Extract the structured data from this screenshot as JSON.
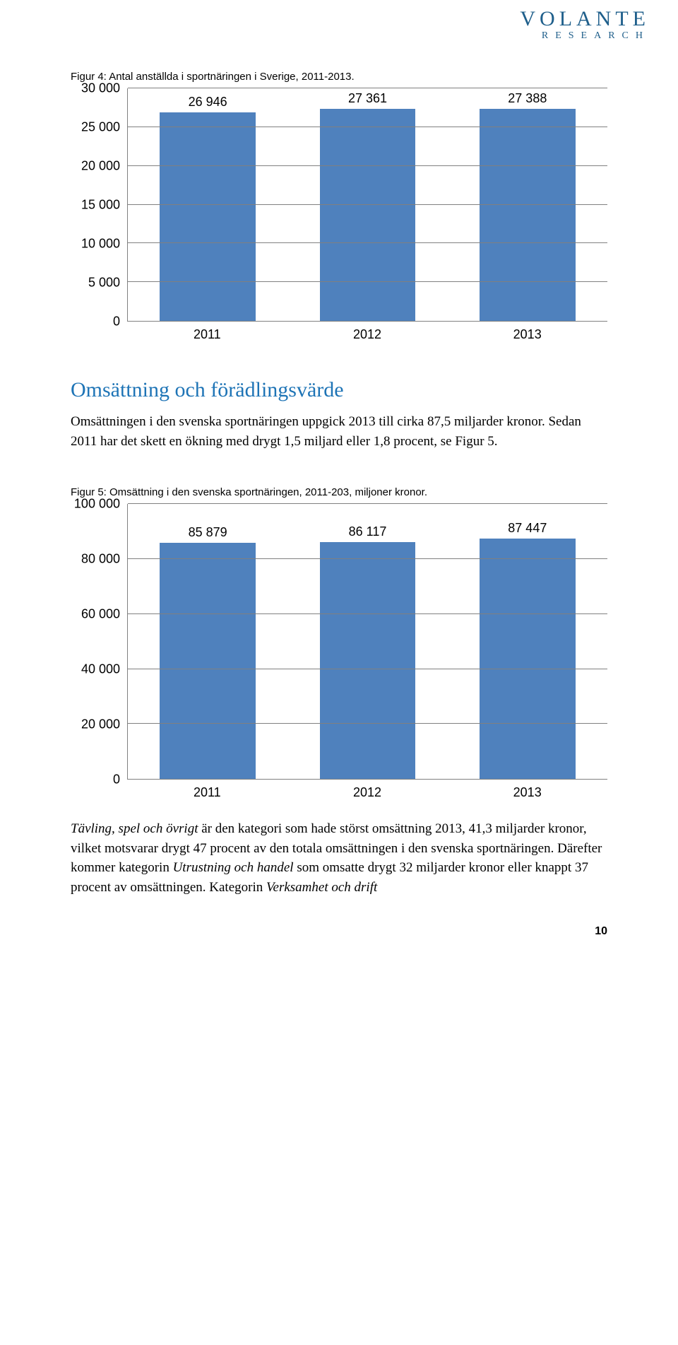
{
  "logo": {
    "brand": "VOLANTE",
    "sub": "RESEARCH",
    "color": "#1f5f8b"
  },
  "figure4": {
    "caption": "Figur 4: Antal anställda i sportnäringen i Sverige, 2011-2013.",
    "type": "bar",
    "categories": [
      "2011",
      "2012",
      "2013"
    ],
    "values": [
      26946,
      27361,
      27388
    ],
    "value_labels": [
      "26 946",
      "27 361",
      "27 388"
    ],
    "ylim": [
      0,
      30000
    ],
    "ytick_step": 5000,
    "ytick_labels": [
      "0",
      "5 000",
      "10 000",
      "15 000",
      "20 000",
      "25 000",
      "30 000"
    ],
    "bar_color": "#4f81bd",
    "grid_color": "#808080",
    "background_color": "#ffffff",
    "bar_width": 0.6,
    "label_fontsize": 18
  },
  "section_heading": "Omsättning och förädlingsvärde",
  "paragraph1": "Omsättningen i den svenska sportnäringen uppgick 2013 till cirka 87,5 miljarder kronor. Sedan 2011 har det skett en ökning med drygt 1,5 miljard eller 1,8 procent, se Figur 5.",
  "figure5": {
    "caption": "Figur 5: Omsättning i den svenska sportnäringen, 2011-203, miljoner kronor.",
    "type": "bar",
    "categories": [
      "2011",
      "2012",
      "2013"
    ],
    "values": [
      85879,
      86117,
      87447
    ],
    "value_labels": [
      "85 879",
      "86 117",
      "87 447"
    ],
    "ylim": [
      0,
      100000
    ],
    "ytick_step": 20000,
    "ytick_labels": [
      "0",
      "20 000",
      "40 000",
      "60 000",
      "80 000",
      "100 000"
    ],
    "bar_color": "#4f81bd",
    "grid_color": "#808080",
    "background_color": "#ffffff",
    "bar_width": 0.6,
    "label_fontsize": 18
  },
  "paragraph2_pre_italic1": "Tävling, spel och övrigt",
  "paragraph2_mid1": " är den kategori som hade störst omsättning 2013, 41,3 miljarder kronor, vilket motsvarar drygt 47 procent av den totala omsättningen i den svenska sportnäringen. Därefter kommer kategorin ",
  "paragraph2_italic2": "Utrustning och handel",
  "paragraph2_mid2": " som omsatte drygt 32 miljarder kronor eller knappt 37 procent av omsättningen. Kategorin ",
  "paragraph2_italic3": "Verksamhet och drift",
  "page_number": "10"
}
